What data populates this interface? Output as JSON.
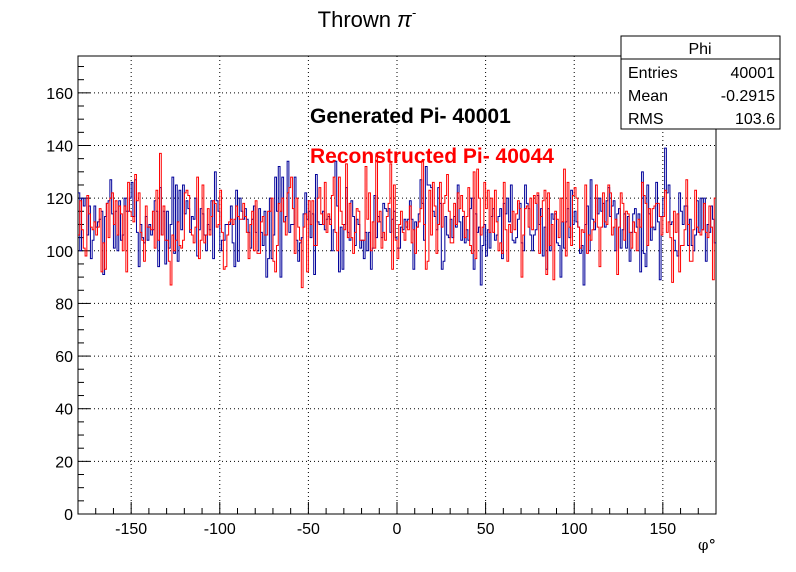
{
  "chart_data": {
    "type": "histogram-step",
    "title": "Thrown",
    "title_symbol": "π",
    "title_sup": "-",
    "xlabel": "φ°",
    "ylabel": "",
    "xlim": [
      -180,
      180
    ],
    "ylim": [
      0,
      174
    ],
    "x_ticks": [
      -150,
      -100,
      -50,
      0,
      50,
      100,
      150
    ],
    "y_ticks": [
      0,
      20,
      40,
      60,
      80,
      100,
      120,
      140,
      160
    ],
    "x_minor_step": 10,
    "y_minor_step": 5,
    "grid": true,
    "n_bins": 360,
    "annotations": [
      {
        "text": "Generated Pi- 40001",
        "color": "#000000",
        "x": -50,
        "y": 147
      },
      {
        "text": "Reconstructed Pi- 40044",
        "color": "#ff0000",
        "x": -50,
        "y": 132
      }
    ],
    "stats_box": {
      "title": "Phi",
      "rows": [
        {
          "label": "Entries",
          "value": "40001"
        },
        {
          "label": "Mean",
          "value": "-0.2915"
        },
        {
          "label": "RMS",
          "value": "103.6"
        }
      ]
    },
    "series": [
      {
        "name": "Generated Pi-",
        "color": "#000099",
        "entries": 40001,
        "mean": 111.1,
        "spread": 9.5,
        "seed": 7
      },
      {
        "name": "Reconstructed Pi-",
        "color": "#ff0000",
        "entries": 40044,
        "mean": 111.2,
        "spread": 9.5,
        "seed": 23
      }
    ]
  }
}
